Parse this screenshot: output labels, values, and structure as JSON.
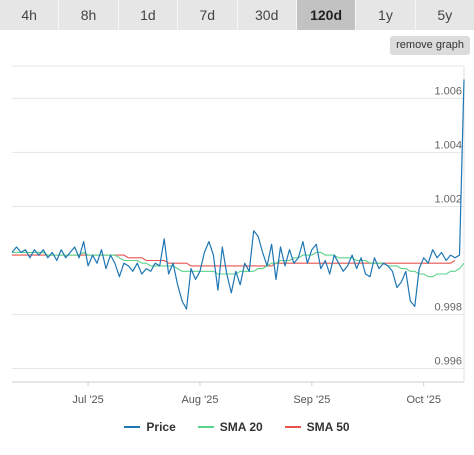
{
  "tabs": [
    {
      "label": "4h",
      "active": false
    },
    {
      "label": "8h",
      "active": false
    },
    {
      "label": "1d",
      "active": false
    },
    {
      "label": "7d",
      "active": false
    },
    {
      "label": "30d",
      "active": false
    },
    {
      "label": "120d",
      "active": true
    },
    {
      "label": "1y",
      "active": false
    },
    {
      "label": "5y",
      "active": false
    }
  ],
  "remove_graph_label": "remove graph",
  "colors": {
    "price": "#1f77b4",
    "sma20": "#5bd38a",
    "sma50": "#e8534f",
    "grid": "#e6e6e6"
  },
  "chart_data": {
    "type": "line",
    "x_ticks": [
      "Jul '25",
      "Aug '25",
      "Sep '25",
      "Oct '25"
    ],
    "x_tick_index": [
      17,
      42,
      67,
      92
    ],
    "y_ticks": [
      "0.996",
      "0.998",
      "1.002",
      "1.004",
      "1.006"
    ],
    "y_tick_values": [
      0.996,
      0.998,
      1.002,
      1.004,
      1.006
    ],
    "ylim": [
      0.9955,
      1.0072
    ],
    "grid": true,
    "legend_position": "bottom-center",
    "series": [
      {
        "name": "Price",
        "color": "#1f77b4",
        "values": [
          1.0003,
          1.0005,
          1.0003,
          1.0004,
          1.0001,
          1.0004,
          1.0002,
          1.0004,
          1.0001,
          1.0003,
          1.0,
          1.0004,
          1.0001,
          1.0003,
          1.0005,
          1.0001,
          1.0007,
          0.9998,
          1.0002,
          0.9999,
          1.0004,
          0.9997,
          1.0002,
          0.9999,
          0.9994,
          0.9999,
          0.9998,
          0.9996,
          0.9999,
          0.9995,
          0.9997,
          0.9996,
          0.9999,
          0.9998,
          1.0008,
          0.9995,
          0.9999,
          0.9991,
          0.9985,
          0.9982,
          0.9997,
          0.9993,
          0.9996,
          1.0003,
          1.0007,
          1.0002,
          0.9989,
          1.0005,
          0.9995,
          0.9988,
          0.9996,
          0.9991,
          0.9999,
          0.9996,
          1.0011,
          1.0009,
          1.0003,
          0.9998,
          1.0006,
          0.9993,
          1.0005,
          0.9998,
          1.0004,
          0.9999,
          1.0001,
          1.0007,
          0.9999,
          1.0004,
          1.0006,
          0.9997,
          1.0,
          0.9995,
          1.0002,
          0.9999,
          0.9996,
          0.9998,
          1.0002,
          0.9997,
          1.0001,
          0.9995,
          0.9994,
          1.0001,
          0.9997,
          0.9999,
          0.9998,
          0.9996,
          0.999,
          0.9992,
          0.9996,
          0.9985,
          0.9983,
          0.9997,
          1.0001,
          0.9999,
          1.0004,
          1.0001,
          1.0003,
          1.0,
          1.0002,
          1.0001,
          1.0002,
          1.0067
        ]
      },
      {
        "name": "SMA 20",
        "color": "#5bd38a",
        "values": [
          1.0003,
          1.0003,
          1.0003,
          1.0003,
          1.0003,
          1.0003,
          1.0003,
          1.0003,
          1.0002,
          1.0002,
          1.0002,
          1.0002,
          1.0002,
          1.0002,
          1.0002,
          1.0002,
          1.0003,
          1.0002,
          1.0002,
          1.0002,
          1.0002,
          1.0002,
          1.0002,
          1.0002,
          1.0001,
          1.0,
          1.0,
          1.0,
          1.0,
          0.9999,
          0.9999,
          0.9998,
          0.9998,
          0.9998,
          0.9998,
          0.9998,
          0.9998,
          0.9997,
          0.9996,
          0.9996,
          0.9996,
          0.9996,
          0.9996,
          0.9996,
          0.9996,
          0.9996,
          0.9995,
          0.9995,
          0.9995,
          0.9995,
          0.9995,
          0.9996,
          0.9996,
          0.9996,
          0.9996,
          0.9997,
          0.9997,
          0.9998,
          0.9999,
          0.9999,
          1.0,
          1.0,
          1.0,
          1.0001,
          1.0001,
          1.0002,
          1.0002,
          1.0002,
          1.0003,
          1.0003,
          1.0002,
          1.0002,
          1.0002,
          1.0001,
          1.0001,
          1.0001,
          1.0001,
          1.0,
          1.0,
          1.0,
          0.9999,
          0.9999,
          0.9999,
          0.9999,
          0.9998,
          0.9998,
          0.9998,
          0.9997,
          0.9997,
          0.9996,
          0.9996,
          0.9995,
          0.9995,
          0.9994,
          0.9994,
          0.9995,
          0.9995,
          0.9995,
          0.9996,
          0.9996,
          0.9997,
          0.9999
        ]
      },
      {
        "name": "SMA 50",
        "color": "#e8534f",
        "values": [
          1.0002,
          1.0002,
          1.0002,
          1.0002,
          1.0002,
          1.0002,
          1.0002,
          1.0002,
          1.0002,
          1.0002,
          1.0002,
          1.0002,
          1.0002,
          1.0002,
          1.0002,
          1.0002,
          1.0002,
          1.0002,
          1.0002,
          1.0002,
          1.0002,
          1.0002,
          1.0002,
          1.0002,
          1.0002,
          1.0002,
          1.0001,
          1.0001,
          1.0001,
          1.0001,
          1.0,
          1.0,
          1.0,
          1.0,
          1.0,
          0.9999,
          0.9999,
          0.9999,
          0.9999,
          0.9999,
          0.9998,
          0.9998,
          0.9998,
          0.9998,
          0.9998,
          0.9998,
          0.9998,
          0.9998,
          0.9998,
          0.9998,
          0.9998,
          0.9998,
          0.9998,
          0.9998,
          0.9998,
          0.9998,
          0.9998,
          0.9998,
          0.9998,
          0.9999,
          0.9999,
          0.9999,
          0.9999,
          0.9999,
          0.9999,
          0.9999,
          0.9999,
          0.9999,
          0.9999,
          0.9999,
          0.9999,
          0.9999,
          0.9999,
          0.9999,
          0.9999,
          0.9999,
          0.9999,
          0.9999,
          0.9999,
          0.9999,
          0.9999,
          0.9999,
          0.9999,
          0.9999,
          0.9999,
          0.9999,
          0.9999,
          0.9999,
          0.9999,
          0.9999,
          0.9999,
          0.9999,
          0.9999,
          0.9999,
          0.9999,
          0.9999,
          0.9999,
          0.9999,
          0.9999,
          1.0
        ]
      }
    ]
  }
}
